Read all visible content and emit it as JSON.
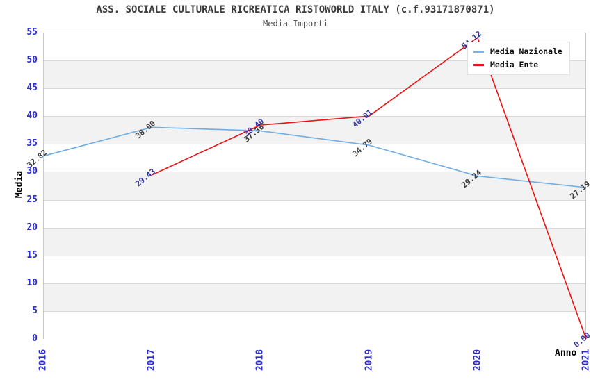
{
  "title": "ASS. SOCIALE CULTURALE RICREATICA RISTOWORLD ITALY (c.f.93171870871)",
  "subtitle": "Media Importi",
  "axes": {
    "y_title": "Media",
    "x_title": "Anno"
  },
  "legend": {
    "items": [
      {
        "label": "Media Nazionale",
        "color": "#7cb2e5"
      },
      {
        "label": "Media Ente",
        "color": "#ee1111"
      }
    ]
  },
  "colors": {
    "tick_label": "#2d2dcf",
    "grid": "#d8d8d8",
    "band_fill": "#f2f2f2",
    "plot_border": "#c8c8c8",
    "title_text": "#3d3d3d"
  },
  "chart_data": {
    "type": "line",
    "title": "ASS. SOCIALE CULTURALE RICREATICA RISTOWORLD ITALY (c.f.93171870871)",
    "subtitle": "Media Importi",
    "xlabel": "Anno",
    "ylabel": "Media",
    "categories": [
      "2016",
      "2017",
      "2018",
      "2019",
      "2020",
      "2021"
    ],
    "series": [
      {
        "name": "Media Nazionale",
        "color": "#6fade2",
        "label_color": "#3c3c3c",
        "values": [
          32.82,
          38.0,
          37.36,
          34.79,
          29.24,
          27.19
        ]
      },
      {
        "name": "Media Ente",
        "color": "#ee1111",
        "label_color": "#32329b",
        "values": [
          null,
          29.43,
          38.4,
          40.01,
          54.12,
          0.0
        ]
      }
    ],
    "ylim": [
      0,
      55
    ],
    "y_tick_step": 5,
    "grid": "horizontal",
    "alternating_bands": true,
    "legend_position": "top-right"
  }
}
